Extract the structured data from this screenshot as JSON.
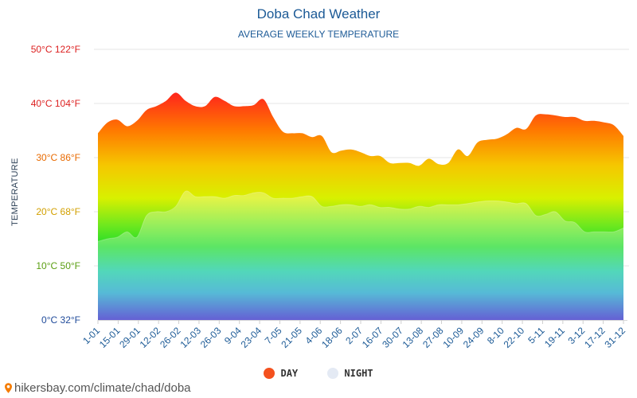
{
  "header": {
    "title": "Doba Chad Weather",
    "subtitle": "AVERAGE WEEKLY TEMPERATURE"
  },
  "legend": [
    {
      "label": "DAY",
      "color": "#f4511e"
    },
    {
      "label": "NIGHT",
      "color": "#e4eaf4"
    }
  ],
  "source": "hikersbay.com/climate/chad/doba",
  "colors": {
    "title": "#1c5a96",
    "gradient_top": "#ff0a2e",
    "gradient_bottom": "#2a23c4"
  },
  "chart_data": {
    "type": "area",
    "title": "Doba Chad Weather",
    "subtitle": "AVERAGE WEEKLY TEMPERATURE",
    "ylabel": "TEMPERATURE",
    "ylim": [
      0,
      50
    ],
    "y_ticks": [
      {
        "value": 0,
        "label": "0°C 32°F",
        "color": "#1f4a9a"
      },
      {
        "value": 10,
        "label": "10°C 50°F",
        "color": "#5a9e12"
      },
      {
        "value": 20,
        "label": "20°C 68°F",
        "color": "#d2a000"
      },
      {
        "value": 30,
        "label": "30°C 86°F",
        "color": "#e86a00"
      },
      {
        "value": 40,
        "label": "40°C 104°F",
        "color": "#dc1f1f"
      },
      {
        "value": 50,
        "label": "50°C 122°F",
        "color": "#dc1f1f"
      }
    ],
    "x_labels": [
      "1-01",
      "15-01",
      "29-01",
      "12-02",
      "26-02",
      "12-03",
      "26-03",
      "9-04",
      "23-04",
      "7-05",
      "21-05",
      "4-06",
      "18-06",
      "2-07",
      "16-07",
      "30-07",
      "13-08",
      "27-08",
      "10-09",
      "24-09",
      "8-10",
      "22-10",
      "5-11",
      "19-11",
      "3-12",
      "17-12",
      "31-12"
    ],
    "series": [
      {
        "name": "DAY",
        "values": [
          34.5,
          36.5,
          37,
          35.8,
          36.8,
          38.8,
          39.5,
          40.5,
          42,
          40.5,
          39.5,
          39.5,
          41.2,
          40.5,
          39.5,
          39.5,
          39.7,
          40.8,
          37.5,
          34.8,
          34.5,
          34.5,
          33.8,
          34,
          31,
          31.3,
          31.5,
          31,
          30.3,
          30.3,
          29,
          29,
          29,
          28.5,
          29.8,
          28.8,
          29,
          31.5,
          30.3,
          32.8,
          33.3,
          33.5,
          34.3,
          35.5,
          35.3,
          37.8,
          38,
          37.8,
          37.5,
          37.5,
          36.8,
          36.8,
          36.5,
          36,
          34
        ]
      },
      {
        "name": "NIGHT",
        "values": [
          14.5,
          15,
          15.3,
          16.3,
          15.3,
          19.3,
          20,
          20,
          21,
          23.8,
          22.8,
          22.8,
          22.8,
          22.5,
          23,
          23,
          23.5,
          23.5,
          22.5,
          22.5,
          22.5,
          22.8,
          22.8,
          21,
          21,
          21.3,
          21.3,
          21,
          21.3,
          20.8,
          20.8,
          20.5,
          20.5,
          21,
          20.8,
          21.3,
          21.3,
          21.3,
          21.5,
          21.8,
          22,
          22,
          21.8,
          21.5,
          21.5,
          19.3,
          19.5,
          20,
          18.3,
          18,
          16.3,
          16.3,
          16.3,
          16.3,
          17
        ]
      }
    ]
  }
}
